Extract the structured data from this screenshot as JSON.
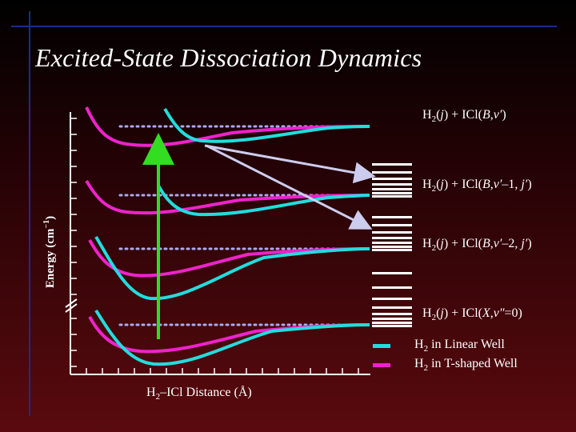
{
  "title": "Excited-State Dissociation Dynamics",
  "y_axis_label": "Energy (cm",
  "y_axis_label_exp": "−1",
  "y_axis_label_close": ")",
  "x_axis_label": "H",
  "x_axis_label_sub": "2",
  "x_axis_label_rest": "–ICl Distance (Å)",
  "channels": [
    {
      "pre": "H",
      "sub": "2",
      "mid1": "(",
      "j": "j",
      "mid2": ") + ICl(",
      "state": "B",
      "comma": ",",
      "v": "v′",
      "rest": ")"
    },
    {
      "pre": "H",
      "sub": "2",
      "mid1": "(",
      "j": "j",
      "mid2": ") + ICl(",
      "state": "B",
      "comma": ",",
      "v": "v′",
      "rest": "–1, ",
      "jp": "j′",
      "close": ")"
    },
    {
      "pre": "H",
      "sub": "2",
      "mid1": "(",
      "j": "j",
      "mid2": ") + ICl(",
      "state": "B",
      "comma": ",",
      "v": "v′",
      "rest": "–2, ",
      "jp": "j′",
      "close": ")"
    },
    {
      "pre": "H",
      "sub": "2",
      "mid1": "(",
      "j": "j",
      "mid2": ") + ICl(",
      "state": "X",
      "comma": ",",
      "v": "v″",
      "rest": "=0)"
    }
  ],
  "legend": [
    {
      "pre": "H",
      "sub": "2",
      "text": " in Linear Well",
      "color": "#22dddd"
    },
    {
      "pre": "H",
      "sub": "2",
      "text": " in T-shaped Well",
      "color": "#ee22cc"
    }
  ],
  "colors": {
    "linear_well": "#22dddd",
    "t_shaped_well": "#ee22cc",
    "excitation_arrow": "#33dd22",
    "product_arrows": "#ccccee",
    "asymptote_dots": "#aaaaee",
    "frame": "#1c2c8c",
    "labels": "#ffffff"
  }
}
